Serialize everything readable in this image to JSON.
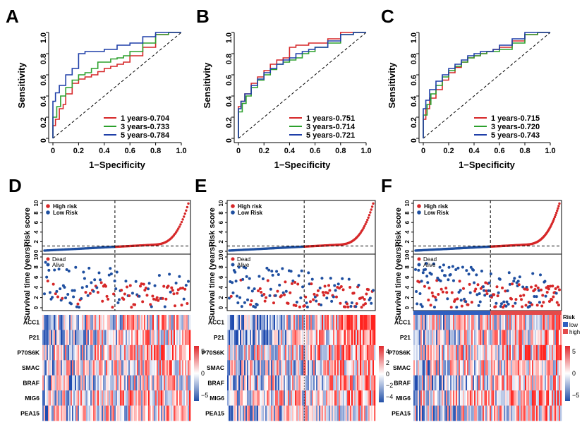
{
  "chart_data": {
    "panel_labels": [
      "A",
      "B",
      "C",
      "D",
      "E",
      "F"
    ],
    "roc_panels": [
      {
        "panel": "A",
        "type": "line",
        "xlabel": "1−Specificity",
        "ylabel": "Sensitivity",
        "xlim": [
          0,
          1
        ],
        "ylim": [
          0,
          1
        ],
        "ticks": [
          "0",
          "0.2",
          "0.4",
          "0.6",
          "0.8",
          "1.0"
        ],
        "series": [
          {
            "name": "1 years-0.704",
            "color": "#d62728",
            "x": [
              0,
              0,
              0.02,
              0.05,
              0.08,
              0.1,
              0.15,
              0.2,
              0.25,
              0.3,
              0.35,
              0.4,
              0.45,
              0.5,
              0.55,
              0.6,
              0.7,
              0.8,
              0.9,
              1
            ],
            "y": [
              0,
              0.05,
              0.12,
              0.18,
              0.28,
              0.32,
              0.42,
              0.52,
              0.56,
              0.58,
              0.6,
              0.63,
              0.66,
              0.68,
              0.7,
              0.72,
              0.78,
              0.86,
              0.98,
              1
            ]
          },
          {
            "name": "3 years-0.733",
            "color": "#2ca02c",
            "x": [
              0,
              0,
              0.03,
              0.06,
              0.1,
              0.15,
              0.2,
              0.25,
              0.3,
              0.35,
              0.4,
              0.45,
              0.5,
              0.55,
              0.6,
              0.7,
              0.8,
              0.9,
              1
            ],
            "y": [
              0,
              0.08,
              0.2,
              0.3,
              0.4,
              0.48,
              0.55,
              0.6,
              0.62,
              0.66,
              0.72,
              0.72,
              0.75,
              0.76,
              0.78,
              0.82,
              0.9,
              0.98,
              1
            ]
          },
          {
            "name": "5 years-0.784",
            "color": "#1f3fa8",
            "x": [
              0,
              0,
              0.02,
              0.05,
              0.1,
              0.15,
              0.2,
              0.25,
              0.3,
              0.35,
              0.4,
              0.45,
              0.5,
              0.55,
              0.6,
              0.7,
              0.8,
              0.9,
              1
            ],
            "y": [
              0,
              0.3,
              0.35,
              0.43,
              0.5,
              0.6,
              0.66,
              0.8,
              0.82,
              0.82,
              0.82,
              0.84,
              0.84,
              0.88,
              0.88,
              0.9,
              0.96,
              1,
              1
            ]
          }
        ]
      },
      {
        "panel": "B",
        "type": "line",
        "xlabel": "1−Specificity",
        "ylabel": "Sensitivity",
        "xlim": [
          0,
          1
        ],
        "ylim": [
          0,
          1
        ],
        "ticks": [
          "0",
          "0.2",
          "0.4",
          "0.6",
          "0.8",
          "1.0"
        ],
        "series": [
          {
            "name": "1 years-0.751",
            "color": "#d62728",
            "x": [
              0,
              0,
              0.02,
              0.05,
              0.1,
              0.15,
              0.2,
              0.25,
              0.3,
              0.35,
              0.4,
              0.45,
              0.5,
              0.55,
              0.6,
              0.7,
              0.8,
              0.9,
              1
            ],
            "y": [
              0,
              0.18,
              0.3,
              0.35,
              0.42,
              0.52,
              0.58,
              0.64,
              0.7,
              0.74,
              0.76,
              0.86,
              0.88,
              0.88,
              0.9,
              0.9,
              0.94,
              1,
              1
            ]
          },
          {
            "name": "3 years-0.714",
            "color": "#2ca02c",
            "x": [
              0,
              0,
              0.03,
              0.06,
              0.1,
              0.15,
              0.2,
              0.25,
              0.3,
              0.35,
              0.4,
              0.45,
              0.5,
              0.55,
              0.6,
              0.7,
              0.8,
              0.9,
              1
            ],
            "y": [
              0,
              0.15,
              0.25,
              0.33,
              0.4,
              0.48,
              0.55,
              0.6,
              0.65,
              0.7,
              0.72,
              0.74,
              0.76,
              0.8,
              0.82,
              0.86,
              0.9,
              0.98,
              1
            ]
          },
          {
            "name": "5 years-0.721",
            "color": "#1f3fa8",
            "x": [
              0,
              0,
              0.02,
              0.05,
              0.1,
              0.15,
              0.2,
              0.25,
              0.3,
              0.35,
              0.4,
              0.45,
              0.5,
              0.55,
              0.6,
              0.7,
              0.8,
              0.9,
              1
            ],
            "y": [
              0,
              0.2,
              0.28,
              0.35,
              0.42,
              0.5,
              0.56,
              0.62,
              0.66,
              0.7,
              0.74,
              0.76,
              0.8,
              0.82,
              0.84,
              0.86,
              0.92,
              0.98,
              1
            ]
          }
        ]
      },
      {
        "panel": "C",
        "type": "line",
        "xlabel": "1−Specificity",
        "ylabel": "Sensitivity",
        "xlim": [
          0,
          1
        ],
        "ylim": [
          0,
          1
        ],
        "ticks": [
          "0",
          "0.2",
          "0.4",
          "0.6",
          "0.8",
          "1.0"
        ],
        "series": [
          {
            "name": "1 years-0.715",
            "color": "#d62728",
            "x": [
              0,
              0,
              0.02,
              0.05,
              0.1,
              0.15,
              0.2,
              0.25,
              0.3,
              0.35,
              0.4,
              0.45,
              0.5,
              0.55,
              0.6,
              0.7,
              0.8,
              0.9,
              1
            ],
            "y": [
              0,
              0.1,
              0.18,
              0.28,
              0.38,
              0.46,
              0.55,
              0.62,
              0.67,
              0.72,
              0.76,
              0.78,
              0.8,
              0.82,
              0.84,
              0.86,
              0.92,
              0.98,
              1
            ]
          },
          {
            "name": "3 years-0.720",
            "color": "#2ca02c",
            "x": [
              0,
              0,
              0.03,
              0.06,
              0.1,
              0.15,
              0.2,
              0.25,
              0.3,
              0.35,
              0.4,
              0.45,
              0.5,
              0.55,
              0.6,
              0.7,
              0.8,
              0.9,
              1
            ],
            "y": [
              0,
              0.12,
              0.22,
              0.32,
              0.42,
              0.5,
              0.58,
              0.64,
              0.68,
              0.72,
              0.76,
              0.78,
              0.8,
              0.82,
              0.82,
              0.84,
              0.9,
              0.98,
              1
            ]
          },
          {
            "name": "5 years-0.743",
            "color": "#1f3fa8",
            "x": [
              0,
              0,
              0.02,
              0.05,
              0.1,
              0.15,
              0.2,
              0.25,
              0.3,
              0.35,
              0.4,
              0.45,
              0.5,
              0.55,
              0.6,
              0.7,
              0.8,
              0.9,
              1
            ],
            "y": [
              0,
              0.15,
              0.28,
              0.36,
              0.46,
              0.54,
              0.6,
              0.66,
              0.7,
              0.74,
              0.78,
              0.8,
              0.82,
              0.82,
              0.84,
              0.88,
              0.94,
              1,
              1
            ]
          }
        ]
      }
    ],
    "risk_panels": [
      {
        "panel": "D",
        "score_ylabel": "Risk score",
        "survival_ylabel": "Survival time (years)",
        "score_yticks": [
          "0",
          "2",
          "4",
          "6",
          "8",
          "10"
        ],
        "survival_yticks": [
          "0",
          "2",
          "4",
          "6",
          "8",
          "10"
        ],
        "legend_risk": [
          "High risk",
          "Low Risk"
        ],
        "legend_status": [
          "Dead",
          "Alive"
        ],
        "genes": [
          "ACC1",
          "P21",
          "P70S6K",
          "SMAC",
          "BRAF",
          "MIG6",
          "PEA15"
        ],
        "colorbar_ticks": [
          "5",
          "0",
          "−5"
        ],
        "colors": {
          "high": "#d62728",
          "low": "#1f4fa0"
        }
      },
      {
        "panel": "E",
        "score_ylabel": "Risk score",
        "survival_ylabel": "Survival time (years)",
        "score_yticks": [
          "0",
          "2",
          "4",
          "6",
          "8",
          "10"
        ],
        "survival_yticks": [
          "0",
          "2",
          "4",
          "6",
          "8",
          "10"
        ],
        "legend_risk": [
          "High risk",
          "Low Risk"
        ],
        "legend_status": [
          "Dead",
          "Alive"
        ],
        "genes": [
          "ACC1",
          "P21",
          "P70S6K",
          "SMAC",
          "BRAF",
          "MIG6",
          "PEA15"
        ],
        "colorbar_ticks": [
          "4",
          "2",
          "0",
          "−2",
          "−4"
        ],
        "colors": {
          "high": "#d62728",
          "low": "#1f4fa0"
        }
      },
      {
        "panel": "F",
        "score_ylabel": "Risk score",
        "survival_ylabel": "Survival time (years)",
        "score_yticks": [
          "0",
          "2",
          "4",
          "6",
          "8",
          "10"
        ],
        "survival_yticks": [
          "0",
          "2",
          "4",
          "6",
          "8",
          "10"
        ],
        "legend_risk": [
          "High risk",
          "Low Risk"
        ],
        "legend_status": [
          "Dead",
          "Alive"
        ],
        "genes": [
          "ACC1",
          "P21",
          "P70S6K",
          "SMAC",
          "BRAF",
          "MIG6",
          "PEA15"
        ],
        "colorbar_ticks": [
          "5",
          "0",
          "−5"
        ],
        "risk_bar_legend": {
          "title": "Risk",
          "labels": [
            "low",
            "high"
          ]
        },
        "colors": {
          "high": "#d62728",
          "low": "#1f4fa0"
        }
      }
    ]
  }
}
